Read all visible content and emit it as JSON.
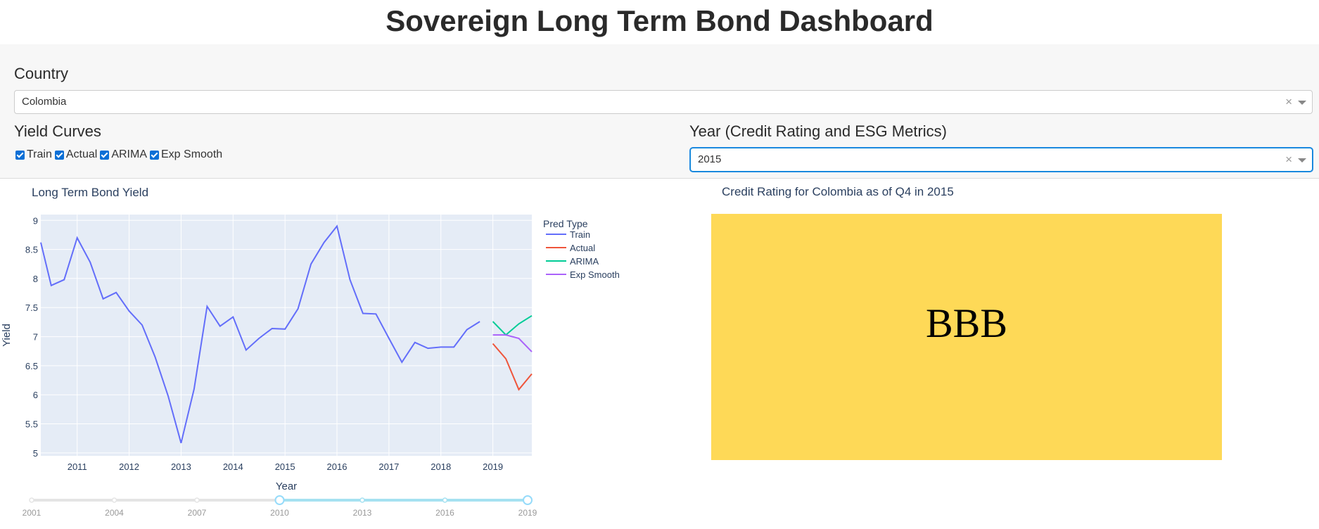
{
  "header": {
    "title": "Sovereign Long Term Bond Dashboard"
  },
  "country": {
    "label": "Country",
    "value": "Colombia"
  },
  "yield_curves": {
    "label": "Yield Curves",
    "options": [
      {
        "label": "Train",
        "checked": true
      },
      {
        "label": "Actual",
        "checked": true
      },
      {
        "label": "ARIMA",
        "checked": true
      },
      {
        "label": "Exp Smooth",
        "checked": true
      }
    ]
  },
  "year_select": {
    "label": "Year (Credit Rating and ESG Metrics)",
    "value": "2015"
  },
  "dropdown_icons": {
    "clear": "×",
    "arrow": "chevron-down-icon"
  },
  "chart_data": {
    "type": "line",
    "title": "Long Term Bond Yield",
    "xlabel": "Year",
    "ylabel": "Yield",
    "xlim": [
      2010.3,
      2019.75
    ],
    "ylim": [
      4.95,
      9.1
    ],
    "xticks": [
      2011,
      2012,
      2013,
      2014,
      2015,
      2016,
      2017,
      2018,
      2019
    ],
    "yticks": [
      5,
      5.5,
      6,
      6.5,
      7,
      7.5,
      8,
      8.5,
      9
    ],
    "legend_title": "Pred Type",
    "legend_position": "right",
    "grid": true,
    "series": [
      {
        "name": "Train",
        "color": "#636efa",
        "x": [
          2010.3,
          2010.5,
          2010.75,
          2011.0,
          2011.25,
          2011.5,
          2011.75,
          2012.0,
          2012.25,
          2012.5,
          2012.75,
          2013.0,
          2013.25,
          2013.5,
          2013.75,
          2014.0,
          2014.25,
          2014.5,
          2014.75,
          2015.0,
          2015.25,
          2015.5,
          2015.75,
          2016.0,
          2016.25,
          2016.5,
          2016.75,
          2017.0,
          2017.25,
          2017.5,
          2017.75,
          2018.0,
          2018.25,
          2018.5,
          2018.75
        ],
        "y": [
          8.62,
          7.88,
          7.98,
          8.7,
          8.28,
          7.65,
          7.76,
          7.44,
          7.2,
          6.65,
          5.98,
          5.17,
          6.1,
          7.52,
          7.18,
          7.34,
          6.77,
          6.97,
          7.14,
          7.13,
          7.48,
          8.25,
          8.62,
          8.9,
          7.98,
          7.4,
          7.39,
          6.97,
          6.56,
          6.9,
          6.8,
          6.82,
          6.82,
          7.12,
          7.26
        ]
      },
      {
        "name": "Actual",
        "color": "#ef553b",
        "x": [
          2019.0,
          2019.25,
          2019.5,
          2019.75
        ],
        "y": [
          6.88,
          6.62,
          6.09,
          6.36
        ]
      },
      {
        "name": "ARIMA",
        "color": "#00cc96",
        "x": [
          2019.0,
          2019.25,
          2019.5,
          2019.75
        ],
        "y": [
          7.26,
          7.03,
          7.22,
          7.36
        ]
      },
      {
        "name": "Exp Smooth",
        "color": "#ab63fa",
        "x": [
          2019.0,
          2019.25,
          2019.5,
          2019.75
        ],
        "y": [
          7.03,
          7.03,
          6.97,
          6.74
        ]
      }
    ]
  },
  "slider": {
    "min": 2001,
    "max": 2019,
    "labels": [
      "2001",
      "2004",
      "2007",
      "2010",
      "2013",
      "2016",
      "2019"
    ],
    "range": [
      2010,
      2019
    ]
  },
  "rating": {
    "title": "Credit Rating for Colombia as of Q4 in 2015",
    "value": "BBB",
    "color": "#fed957"
  }
}
